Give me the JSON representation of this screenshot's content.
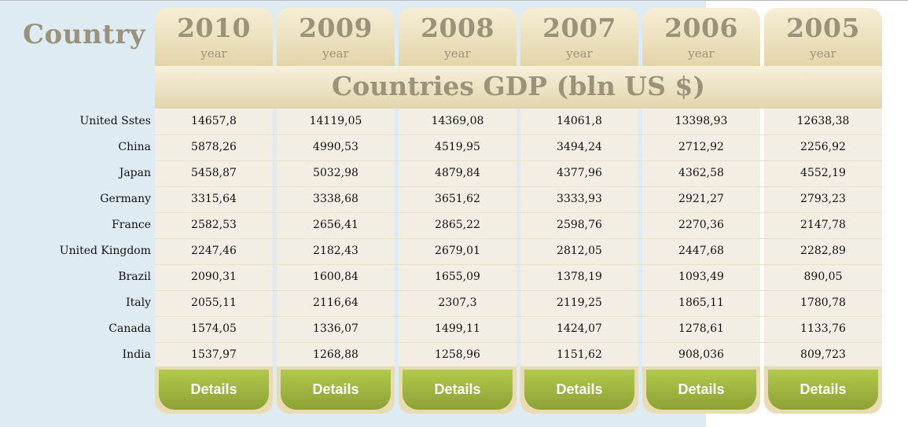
{
  "header": {
    "country_label": "Country"
  },
  "table_title": "Countries GDP (bln US $)",
  "columns": [
    {
      "year": "2010",
      "sub": "year",
      "button": "Details"
    },
    {
      "year": "2009",
      "sub": "year",
      "button": "Details"
    },
    {
      "year": "2008",
      "sub": "year",
      "button": "Details"
    },
    {
      "year": "2007",
      "sub": "year",
      "button": "Details"
    },
    {
      "year": "2006",
      "sub": "year",
      "button": "Details"
    },
    {
      "year": "2005",
      "sub": "year",
      "button": "Details"
    }
  ],
  "rows": [
    {
      "country": "United Sstes",
      "values": [
        "14657,8",
        "14119,05",
        "14369,08",
        "14061,8",
        "13398,93",
        "12638,38"
      ]
    },
    {
      "country": "China",
      "values": [
        "5878,26",
        "4990,53",
        "4519,95",
        "3494,24",
        "2712,92",
        "2256,92"
      ]
    },
    {
      "country": "Japan",
      "values": [
        "5458,87",
        "5032,98",
        "4879,84",
        "4377,96",
        "4362,58",
        "4552,19"
      ]
    },
    {
      "country": "Germany",
      "values": [
        "3315,64",
        "3338,68",
        "3651,62",
        "3333,93",
        "2921,27",
        "2793,23"
      ]
    },
    {
      "country": "France",
      "values": [
        "2582,53",
        "2656,41",
        "2865,22",
        "2598,76",
        "2270,36",
        "2147,78"
      ]
    },
    {
      "country": "United Kingdom",
      "values": [
        "2247,46",
        "2182,43",
        "2679,01",
        "2812,05",
        "2447,68",
        "2282,89"
      ]
    },
    {
      "country": "Brazil",
      "values": [
        "2090,31",
        "1600,84",
        "1655,09",
        "1378,19",
        "1093,49",
        "890,05"
      ]
    },
    {
      "country": "Italy",
      "values": [
        "2055,11",
        "2116,64",
        "2307,3",
        "2119,25",
        "1865,11",
        "1780,78"
      ]
    },
    {
      "country": "Canada",
      "values": [
        "1574,05",
        "1336,07",
        "1499,11",
        "1424,07",
        "1278,61",
        "1133,76"
      ]
    },
    {
      "country": "India",
      "values": [
        "1537,97",
        "1268,88",
        "1258,96",
        "1151,62",
        "908,036",
        "809,723"
      ]
    }
  ]
}
